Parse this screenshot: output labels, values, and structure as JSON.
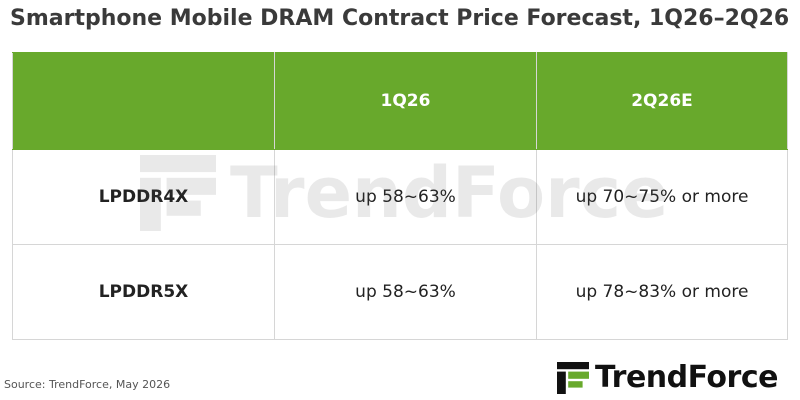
{
  "header": {
    "title": "Smartphone Mobile DRAM Contract Price Forecast, 1Q26–2Q26"
  },
  "table": {
    "columns": [
      "1Q26",
      "2Q26E"
    ],
    "rows": [
      [
        "LPDDR4X",
        "up 58~63%",
        "up 70~75% or more"
      ],
      [
        "LPDDR5X",
        "up 58~63%",
        "up 78~83% or more"
      ]
    ]
  },
  "watermark": "TrendForce",
  "footer": {
    "source": "Source: TrendForce, May 2026",
    "logo": "TrendForce"
  }
}
